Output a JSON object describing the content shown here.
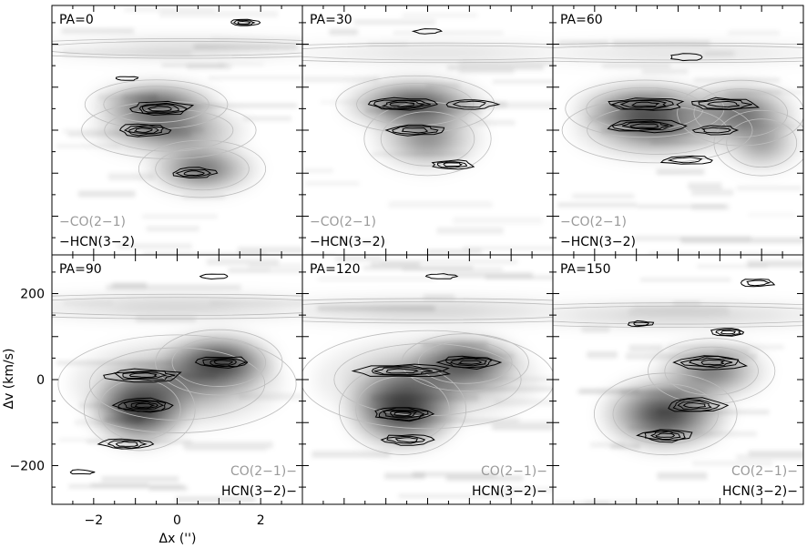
{
  "chart_data": {
    "type": "contour",
    "xlabel": "Δx ('')",
    "ylabel": "Δv (km/s)",
    "xlim": [
      -3,
      3
    ],
    "ylim": [
      -290,
      290
    ],
    "xticks": [
      -2,
      0,
      2
    ],
    "yticks": [
      -200,
      0,
      200
    ],
    "xtick_labels": [
      "−2",
      "0",
      "2"
    ],
    "ytick_labels": [
      "−200",
      "0",
      "200"
    ],
    "legend": [
      "CO(2−1)",
      "HCN(3−2)"
    ],
    "series": [
      {
        "name": "CO(2−1)",
        "style": "grayscale + gray contours"
      },
      {
        "name": "HCN(3−2)",
        "style": "black contours"
      }
    ],
    "panels": [
      {
        "title": "PA=0",
        "legend_position": "bottom-left",
        "co": [
          {
            "x": -0.5,
            "v": 60,
            "sx": 0.9,
            "sv": 30,
            "a": 0.6
          },
          {
            "x": -0.2,
            "v": 0,
            "sx": 1.1,
            "sv": 35,
            "a": 0.45
          },
          {
            "x": 0.6,
            "v": -90,
            "sx": 0.8,
            "sv": 35,
            "a": 0.5
          },
          {
            "x": 0.2,
            "v": 190,
            "sx": 2.5,
            "sv": 12,
            "a": 0.18
          }
        ],
        "hcn": [
          {
            "x": -0.4,
            "v": 50,
            "sx": 0.75,
            "sv": 16,
            "n": 4
          },
          {
            "x": -0.8,
            "v": 0,
            "sx": 0.6,
            "sv": 14,
            "n": 4
          },
          {
            "x": 0.4,
            "v": -100,
            "sx": 0.5,
            "sv": 12,
            "n": 3
          },
          {
            "x": 1.6,
            "v": 250,
            "sx": 0.35,
            "sv": 7,
            "n": 3
          },
          {
            "x": -1.2,
            "v": 120,
            "sx": 0.25,
            "sv": 5,
            "n": 1
          }
        ]
      },
      {
        "title": "PA=30",
        "legend_position": "bottom-left",
        "co": [
          {
            "x": -0.3,
            "v": 60,
            "sx": 1.0,
            "sv": 35,
            "a": 0.65
          },
          {
            "x": 0.0,
            "v": -20,
            "sx": 0.8,
            "sv": 45,
            "a": 0.35
          },
          {
            "x": 0.3,
            "v": 180,
            "sx": 2.8,
            "sv": 12,
            "a": 0.15
          }
        ],
        "hcn": [
          {
            "x": -0.6,
            "v": 60,
            "sx": 0.8,
            "sv": 14,
            "n": 4
          },
          {
            "x": 1.0,
            "v": 60,
            "sx": 0.6,
            "sv": 12,
            "n": 2
          },
          {
            "x": -0.3,
            "v": 0,
            "sx": 0.7,
            "sv": 12,
            "n": 3
          },
          {
            "x": 0.6,
            "v": -80,
            "sx": 0.5,
            "sv": 10,
            "n": 3
          },
          {
            "x": 0.0,
            "v": 230,
            "sx": 0.3,
            "sv": 6,
            "n": 1
          }
        ]
      },
      {
        "title": "PA=60",
        "legend_position": "bottom-left",
        "co": [
          {
            "x": -0.8,
            "v": 50,
            "sx": 1.0,
            "sv": 35,
            "a": 0.6
          },
          {
            "x": 1.5,
            "v": 40,
            "sx": 0.8,
            "sv": 40,
            "a": 0.5
          },
          {
            "x": -0.5,
            "v": 0,
            "sx": 1.2,
            "sv": 40,
            "a": 0.4
          },
          {
            "x": 2.0,
            "v": -30,
            "sx": 0.6,
            "sv": 40,
            "a": 0.3
          },
          {
            "x": 0.0,
            "v": 180,
            "sx": 3.0,
            "sv": 12,
            "a": 0.15
          }
        ],
        "hcn": [
          {
            "x": -0.8,
            "v": 60,
            "sx": 0.9,
            "sv": 14,
            "n": 4
          },
          {
            "x": 1.1,
            "v": 60,
            "sx": 0.8,
            "sv": 14,
            "n": 3
          },
          {
            "x": -0.8,
            "v": 10,
            "sx": 0.9,
            "sv": 14,
            "n": 4
          },
          {
            "x": 0.9,
            "v": 0,
            "sx": 0.5,
            "sv": 10,
            "n": 2
          },
          {
            "x": 0.2,
            "v": -70,
            "sx": 0.6,
            "sv": 10,
            "n": 2
          },
          {
            "x": 0.2,
            "v": 170,
            "sx": 0.35,
            "sv": 8,
            "n": 1
          }
        ]
      },
      {
        "title": "PA=90",
        "legend_position": "bottom-right",
        "co": [
          {
            "x": 1.0,
            "v": 40,
            "sx": 0.8,
            "sv": 40,
            "a": 0.7
          },
          {
            "x": -0.9,
            "v": -70,
            "sx": 0.7,
            "sv": 50,
            "a": 0.75
          },
          {
            "x": 0.0,
            "v": -10,
            "sx": 1.5,
            "sv": 60,
            "a": 0.35
          },
          {
            "x": 0.0,
            "v": 170,
            "sx": 3.0,
            "sv": 15,
            "a": 0.2
          }
        ],
        "hcn": [
          {
            "x": -0.8,
            "v": 10,
            "sx": 0.9,
            "sv": 14,
            "n": 4
          },
          {
            "x": 1.1,
            "v": 40,
            "sx": 0.6,
            "sv": 14,
            "n": 4
          },
          {
            "x": -0.8,
            "v": -60,
            "sx": 0.7,
            "sv": 16,
            "n": 5
          },
          {
            "x": -1.2,
            "v": -150,
            "sx": 0.6,
            "sv": 12,
            "n": 3
          },
          {
            "x": 0.9,
            "v": 240,
            "sx": 0.35,
            "sv": 6,
            "n": 1
          },
          {
            "x": -2.3,
            "v": -215,
            "sx": 0.3,
            "sv": 5,
            "n": 1
          }
        ]
      },
      {
        "title": "PA=120",
        "legend_position": "bottom-right",
        "co": [
          {
            "x": -0.6,
            "v": -70,
            "sx": 0.8,
            "sv": 55,
            "a": 0.75
          },
          {
            "x": 0.9,
            "v": 40,
            "sx": 0.8,
            "sv": 35,
            "a": 0.6
          },
          {
            "x": 0.0,
            "v": 0,
            "sx": 1.6,
            "sv": 60,
            "a": 0.3
          },
          {
            "x": 0.0,
            "v": 160,
            "sx": 3.0,
            "sv": 15,
            "a": 0.2
          }
        ],
        "hcn": [
          {
            "x": -0.6,
            "v": 20,
            "sx": 1.1,
            "sv": 14,
            "n": 4
          },
          {
            "x": 1.0,
            "v": 40,
            "sx": 0.7,
            "sv": 14,
            "n": 4
          },
          {
            "x": -0.6,
            "v": -80,
            "sx": 0.7,
            "sv": 16,
            "n": 5
          },
          {
            "x": -0.5,
            "v": -140,
            "sx": 0.6,
            "sv": 12,
            "n": 3
          },
          {
            "x": 0.3,
            "v": 240,
            "sx": 0.35,
            "sv": 6,
            "n": 1
          }
        ]
      },
      {
        "title": "PA=150",
        "legend_position": "bottom-right",
        "co": [
          {
            "x": -0.3,
            "v": -80,
            "sx": 0.9,
            "sv": 50,
            "a": 0.7
          },
          {
            "x": 0.8,
            "v": 20,
            "sx": 0.8,
            "sv": 40,
            "a": 0.45
          },
          {
            "x": 0.0,
            "v": 150,
            "sx": 3.0,
            "sv": 15,
            "a": 0.2
          }
        ],
        "hcn": [
          {
            "x": 0.8,
            "v": 40,
            "sx": 0.8,
            "sv": 16,
            "n": 4
          },
          {
            "x": 0.4,
            "v": -60,
            "sx": 0.7,
            "sv": 16,
            "n": 4
          },
          {
            "x": -0.3,
            "v": -130,
            "sx": 0.6,
            "sv": 14,
            "n": 4
          },
          {
            "x": 1.2,
            "v": 110,
            "sx": 0.4,
            "sv": 9,
            "n": 3
          },
          {
            "x": 1.9,
            "v": 225,
            "sx": 0.4,
            "sv": 9,
            "n": 2
          },
          {
            "x": -0.9,
            "v": 130,
            "sx": 0.3,
            "sv": 6,
            "n": 2
          }
        ]
      }
    ]
  }
}
